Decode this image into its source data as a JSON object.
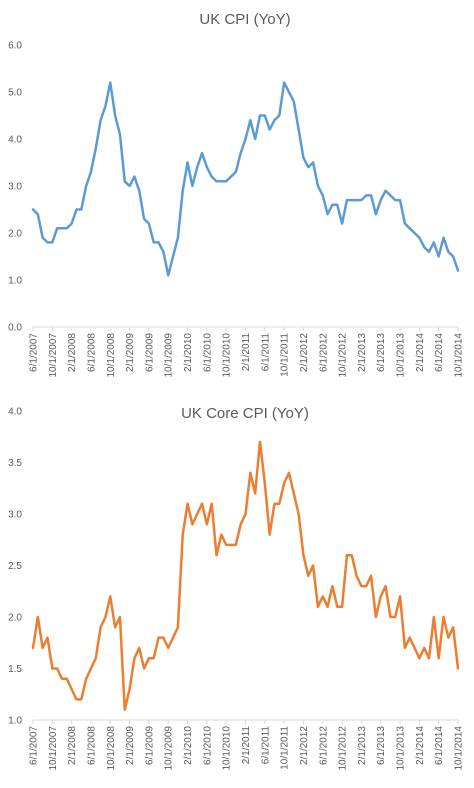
{
  "chart_data": [
    {
      "type": "line",
      "title": "UK CPI (YoY)",
      "color": "#5B9BD5",
      "ylim": [
        0.0,
        6.0
      ],
      "yticks": [
        "0.0",
        "1.0",
        "2.0",
        "3.0",
        "4.0",
        "5.0",
        "6.0"
      ],
      "grid": "none",
      "xtick_labels": [
        "6/1/2007",
        "10/1/2007",
        "2/1/2008",
        "6/1/2008",
        "10/1/2008",
        "2/1/2009",
        "6/1/2009",
        "10/1/2009",
        "2/1/2010",
        "6/1/2010",
        "10/1/2010",
        "2/1/2011",
        "6/1/2011",
        "10/1/2011",
        "2/1/2012",
        "6/1/2012",
        "10/1/2012",
        "2/1/2013",
        "6/1/2013",
        "10/1/2013",
        "2/1/2014",
        "6/1/2014",
        "10/1/2014"
      ],
      "x_start": "6/1/2007",
      "x_end": "10/1/2014",
      "values": [
        2.5,
        2.4,
        1.9,
        1.8,
        1.8,
        2.1,
        2.1,
        2.1,
        2.2,
        2.5,
        2.5,
        3.0,
        3.3,
        3.8,
        4.4,
        4.7,
        5.2,
        4.5,
        4.1,
        3.1,
        3.0,
        3.2,
        2.9,
        2.3,
        2.2,
        1.8,
        1.8,
        1.6,
        1.1,
        1.5,
        1.9,
        2.9,
        3.5,
        3.0,
        3.4,
        3.7,
        3.4,
        3.2,
        3.1,
        3.1,
        3.1,
        3.2,
        3.3,
        3.7,
        4.0,
        4.4,
        4.0,
        4.5,
        4.5,
        4.2,
        4.4,
        4.5,
        5.2,
        5.0,
        4.8,
        4.2,
        3.6,
        3.4,
        3.5,
        3.0,
        2.8,
        2.4,
        2.6,
        2.6,
        2.2,
        2.7,
        2.7,
        2.7,
        2.7,
        2.8,
        2.8,
        2.4,
        2.7,
        2.9,
        2.8,
        2.7,
        2.7,
        2.2,
        2.1,
        2.0,
        1.9,
        1.7,
        1.6,
        1.8,
        1.5,
        1.9,
        1.6,
        1.5,
        1.2
      ]
    },
    {
      "type": "line",
      "title": "UK Core CPI (YoY)",
      "color": "#ED7D31",
      "ylim": [
        1.0,
        4.0
      ],
      "yticks": [
        "1.0",
        "1.5",
        "2.0",
        "2.5",
        "3.0",
        "3.5",
        "4.0"
      ],
      "grid": "none",
      "xtick_labels": [
        "6/1/2007",
        "10/1/2007",
        "2/1/2008",
        "6/1/2008",
        "10/1/2008",
        "2/1/2009",
        "6/1/2009",
        "10/1/2009",
        "2/1/2010",
        "6/1/2010",
        "10/1/2010",
        "2/1/2011",
        "6/1/2011",
        "10/1/2011",
        "2/1/2012",
        "6/1/2012",
        "10/1/2012",
        "2/1/2013",
        "6/1/2013",
        "10/1/2013",
        "2/1/2014",
        "6/1/2014",
        "10/1/2014"
      ],
      "x_start": "6/1/2007",
      "x_end": "10/1/2014",
      "values": [
        1.7,
        2.0,
        1.7,
        1.8,
        1.5,
        1.5,
        1.4,
        1.4,
        1.3,
        1.2,
        1.2,
        1.4,
        1.5,
        1.6,
        1.9,
        2.0,
        2.2,
        1.9,
        2.0,
        1.1,
        1.3,
        1.6,
        1.7,
        1.5,
        1.6,
        1.6,
        1.8,
        1.8,
        1.7,
        1.8,
        1.9,
        2.8,
        3.1,
        2.9,
        3.0,
        3.1,
        2.9,
        3.1,
        2.6,
        2.8,
        2.7,
        2.7,
        2.7,
        2.9,
        3.0,
        3.4,
        3.2,
        3.7,
        3.3,
        2.8,
        3.1,
        3.1,
        3.3,
        3.4,
        3.2,
        3.0,
        2.6,
        2.4,
        2.5,
        2.1,
        2.2,
        2.1,
        2.3,
        2.1,
        2.1,
        2.6,
        2.6,
        2.4,
        2.3,
        2.3,
        2.4,
        2.0,
        2.2,
        2.3,
        2.0,
        2.0,
        2.2,
        1.7,
        1.8,
        1.7,
        1.6,
        1.7,
        1.6,
        2.0,
        1.6,
        2.0,
        1.8,
        1.9,
        1.5
      ]
    }
  ]
}
